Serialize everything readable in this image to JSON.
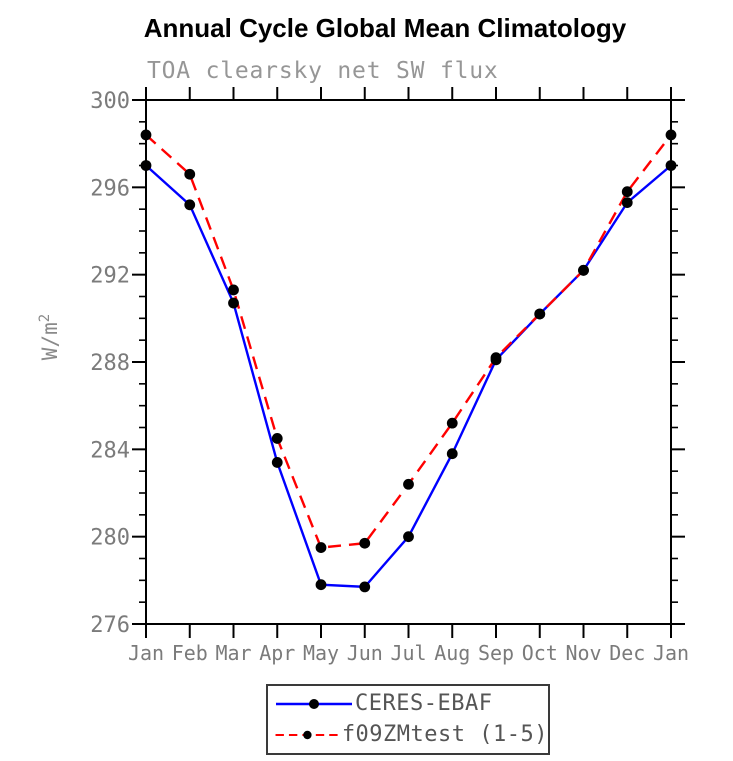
{
  "chart_data": {
    "type": "line",
    "title": "Annual Cycle Global Mean Climatology",
    "subtitle": "TOA clearsky net SW flux",
    "ylabel": "W/m²",
    "ylim": [
      276,
      300
    ],
    "ytick_step_major": 4,
    "ytick_step_minor": 1,
    "grid": false,
    "legend_position": "bottom",
    "axis_color": "#000000",
    "tick_label_color": "#7b7b7b",
    "categories": [
      "Jan",
      "Feb",
      "Mar",
      "Apr",
      "May",
      "Jun",
      "Jul",
      "Aug",
      "Sep",
      "Oct",
      "Nov",
      "Dec",
      "Jan"
    ],
    "series": [
      {
        "name": "CERES-EBAF",
        "color": "#0000ff",
        "line_style": "solid",
        "marker": "circle",
        "marker_color": "#000000",
        "values": [
          297.0,
          295.2,
          290.7,
          283.4,
          277.8,
          277.7,
          280.0,
          283.8,
          288.1,
          290.2,
          292.2,
          295.3,
          297.0
        ]
      },
      {
        "name": "f09ZMtest (1-5)",
        "color": "#ff0000",
        "line_style": "dashed",
        "marker": "circle",
        "marker_color": "#000000",
        "values": [
          298.4,
          296.6,
          291.3,
          284.5,
          279.5,
          279.7,
          282.4,
          285.2,
          288.2,
          290.2,
          292.2,
          295.8,
          298.4
        ]
      }
    ]
  }
}
